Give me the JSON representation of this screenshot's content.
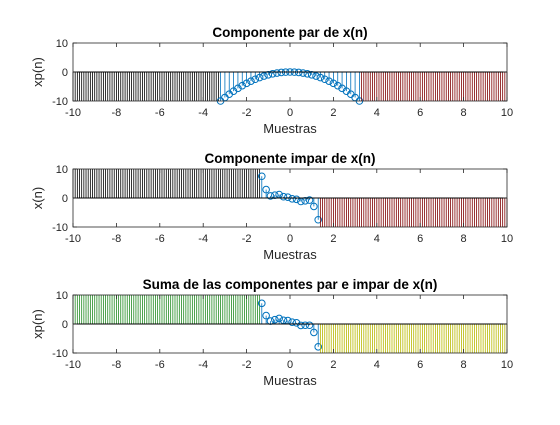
{
  "chart_data": [
    {
      "type": "stem",
      "title": "Componente par de x(n)",
      "xlabel": "Muestras",
      "ylabel": "xp(n)",
      "xlim": [
        -10,
        10
      ],
      "ylim": [
        -10,
        10
      ],
      "xticks": [
        "-10",
        "-8",
        "-6",
        "-4",
        "-2",
        "0",
        "2",
        "4",
        "6",
        "8",
        "10"
      ],
      "yticks": [
        "-10",
        "0",
        "10"
      ],
      "grid": false,
      "series": [
        {
          "color": "#000000",
          "x_range": [
            -10,
            -3.2
          ],
          "step": 0.1,
          "values": "constant -10 to 0"
        },
        {
          "color": "#0072BD",
          "x_range": [
            -3.2,
            3.2
          ],
          "step": 0.2,
          "values": "quadratic -x^2, from -10 at x=±3.2 to 0 at x=0",
          "marker": "circle"
        },
        {
          "color": "#7F0000",
          "x_range": [
            3.2,
            10
          ],
          "step": 0.1,
          "values": "constant -10 to 0"
        }
      ]
    },
    {
      "type": "stem",
      "title": "Componente impar de x(n)",
      "xlabel": "Muestras",
      "ylabel": "x(n)",
      "xlim": [
        -10,
        10
      ],
      "ylim": [
        -10,
        10
      ],
      "xticks": [
        "-10",
        "-8",
        "-6",
        "-4",
        "-2",
        "0",
        "2",
        "4",
        "6",
        "8",
        "10"
      ],
      "yticks": [
        "-10",
        "0",
        "10"
      ],
      "grid": false,
      "series": [
        {
          "color": "#000000",
          "x_range": [
            -10,
            -1.3
          ],
          "step": 0.1,
          "values": "constant 10 from 0"
        },
        {
          "color": "#0072BD",
          "x_range": [
            -1.3,
            1.3
          ],
          "step": 0.2,
          "values": "odd cubic-like, from 7.6 at x=-1.3 to -7.6 at x=1.3",
          "marker": "circle"
        },
        {
          "color": "#7F0000",
          "x_range": [
            1.3,
            10
          ],
          "step": 0.1,
          "values": "constant -10 from 0"
        }
      ]
    },
    {
      "type": "stem",
      "title": "Suma de las componentes par e impar de x(n)",
      "xlabel": "Muestras",
      "ylabel": "xp(n)",
      "xlim": [
        -10,
        10
      ],
      "ylim": [
        -10,
        10
      ],
      "xticks": [
        "-10",
        "-8",
        "-6",
        "-4",
        "-2",
        "0",
        "2",
        "4",
        "6",
        "8",
        "10"
      ],
      "yticks": [
        "-10",
        "0",
        "10"
      ],
      "grid": false,
      "series": [
        {
          "color": "#238B23",
          "x_range": [
            -10,
            -1.3
          ],
          "step": 0.1,
          "values": "constant 10 from 0"
        },
        {
          "color": "#0072BD",
          "x_range": [
            -1.3,
            1.3
          ],
          "step": 0.2,
          "values": "odd cubic-like, from 6 at x=-1.3 to -9.4 at x=1.3",
          "marker": "circle"
        },
        {
          "color": "#B8B800",
          "x_range": [
            1.3,
            10
          ],
          "step": 0.1,
          "values": "constant -10 from 0"
        }
      ]
    }
  ]
}
